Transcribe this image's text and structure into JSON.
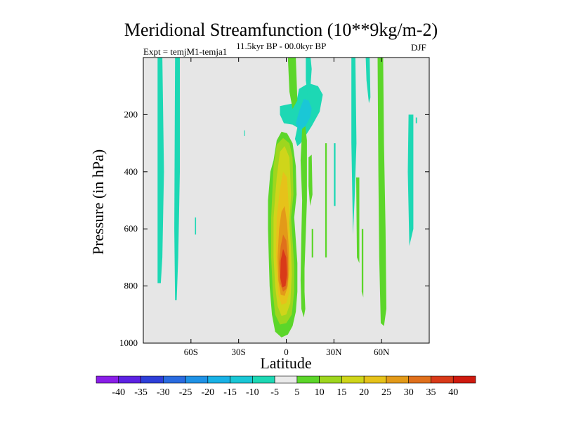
{
  "chart_data": {
    "type": "contour",
    "title": "Meridional Streamfunction (10**9kg/m-2)",
    "subtitle_left": "Expt = temjM1-temja1",
    "subtitle_center": "11.5kyr BP - 00.0kyr BP",
    "subtitle_right": "DJF",
    "xlabel": "Latitude",
    "ylabel": "Pressure (in hPa)",
    "xlim": [
      -90,
      90
    ],
    "ylim": [
      1000,
      0
    ],
    "x_ticks": [
      {
        "value": -60,
        "label": "60S"
      },
      {
        "value": -30,
        "label": "30S"
      },
      {
        "value": 0,
        "label": "0"
      },
      {
        "value": 30,
        "label": "30N"
      },
      {
        "value": 60,
        "label": "60N"
      }
    ],
    "y_ticks": [
      {
        "value": 200,
        "label": "200"
      },
      {
        "value": 400,
        "label": "400"
      },
      {
        "value": 600,
        "label": "600"
      },
      {
        "value": 800,
        "label": "800"
      },
      {
        "value": 1000,
        "label": "1000"
      }
    ],
    "background_color": "#e6e6e6",
    "colorbar": {
      "labels": [
        "-40",
        "-35",
        "-30",
        "-25",
        "-20",
        "-15",
        "-10",
        "-5",
        "5",
        "10",
        "15",
        "20",
        "25",
        "30",
        "35",
        "40"
      ],
      "colors": [
        "#8a1ee8",
        "#5d22e3",
        "#2e3fd9",
        "#2a6be0",
        "#1f92e6",
        "#19b2e6",
        "#1ac7d6",
        "#1dd8b4",
        "#eaeaea",
        "#5cd62a",
        "#9ed61e",
        "#cfd51a",
        "#e6c21a",
        "#e39a19",
        "#e0701c",
        "#d93a19",
        "#cf1a0f"
      ]
    },
    "regions": [
      {
        "name": "negative-band-70s",
        "level": -7.5,
        "points": [
          [
            -81,
            0
          ],
          [
            -78,
            0
          ],
          [
            -77,
            400
          ],
          [
            -78,
            700
          ],
          [
            -79,
            790
          ],
          [
            -81,
            790
          ],
          [
            -81,
            500
          ]
        ]
      },
      {
        "name": "negative-band-65s",
        "level": -7.5,
        "points": [
          [
            -70,
            0
          ],
          [
            -67,
            0
          ],
          [
            -67,
            400
          ],
          [
            -68,
            700
          ],
          [
            -69,
            850
          ],
          [
            -70,
            850
          ],
          [
            -70.5,
            600
          ]
        ]
      },
      {
        "name": "negative-speck-60s",
        "level": -7.5,
        "points": [
          [
            -57.5,
            560
          ],
          [
            -56.8,
            560
          ],
          [
            -56.8,
            620
          ],
          [
            -57.5,
            620
          ]
        ]
      },
      {
        "name": "negative-speck-25s",
        "level": -7.5,
        "points": [
          [
            -26.5,
            255
          ],
          [
            -26,
            255
          ],
          [
            -26,
            275
          ],
          [
            -26.5,
            275
          ]
        ]
      },
      {
        "name": "upper-cell-outer",
        "level": -7.5,
        "points": [
          [
            8,
            110
          ],
          [
            14,
            90
          ],
          [
            20,
            100
          ],
          [
            23,
            130
          ],
          [
            21,
            190
          ],
          [
            16,
            240
          ],
          [
            12,
            275
          ],
          [
            9,
            300
          ],
          [
            7,
            310
          ],
          [
            5.5,
            285
          ],
          [
            7,
            245
          ],
          [
            4,
            235
          ],
          [
            -1.5,
            230
          ],
          [
            -4,
            200
          ],
          [
            -4,
            170
          ],
          [
            0,
            165
          ],
          [
            5,
            160
          ],
          [
            7,
            140
          ]
        ]
      },
      {
        "name": "upper-cell-inner",
        "level": -12.5,
        "points": [
          [
            11,
            145
          ],
          [
            14,
            150
          ],
          [
            16,
            178
          ],
          [
            15,
            210
          ],
          [
            12,
            240
          ],
          [
            8,
            255
          ],
          [
            6,
            230
          ],
          [
            8,
            190
          ]
        ]
      },
      {
        "name": "neg-band-10n",
        "level": -7.5,
        "points": [
          [
            12.3,
            0
          ],
          [
            15.3,
            0
          ],
          [
            16,
            40
          ],
          [
            15,
            120
          ],
          [
            13.5,
            130
          ],
          [
            12.3,
            80
          ]
        ]
      },
      {
        "name": "neg-band-30n",
        "level": -7.5,
        "points": [
          [
            30,
            300
          ],
          [
            31,
            300
          ],
          [
            31,
            520
          ],
          [
            30,
            520
          ]
        ]
      },
      {
        "name": "neg-band-40n",
        "level": -7.5,
        "points": [
          [
            41,
            0
          ],
          [
            43.5,
            0
          ],
          [
            44.2,
            300
          ],
          [
            43,
            500
          ],
          [
            42,
            620
          ],
          [
            41,
            300
          ]
        ]
      },
      {
        "name": "neg-band-48n",
        "level": -7.5,
        "points": [
          [
            50,
            0
          ],
          [
            52.5,
            0
          ],
          [
            53,
            140
          ],
          [
            52,
            160
          ],
          [
            50.5,
            80
          ]
        ]
      },
      {
        "name": "neg-band-78n",
        "level": -7.5,
        "points": [
          [
            77,
            200
          ],
          [
            80,
            200
          ],
          [
            80,
            600
          ],
          [
            77.5,
            660
          ],
          [
            76.5,
            400
          ]
        ]
      },
      {
        "name": "neg-speck-80n",
        "level": -7.5,
        "points": [
          [
            81.5,
            210
          ],
          [
            82.3,
            210
          ],
          [
            82.3,
            230
          ],
          [
            81.5,
            230
          ]
        ]
      },
      {
        "name": "positive-outer",
        "level": 7.5,
        "points": [
          [
            -8,
            360
          ],
          [
            -6,
            290
          ],
          [
            -3,
            260
          ],
          [
            0.5,
            265
          ],
          [
            4,
            300
          ],
          [
            6,
            380
          ],
          [
            6.5,
            480
          ],
          [
            5,
            560
          ],
          [
            6,
            640
          ],
          [
            7,
            720
          ],
          [
            7,
            820
          ],
          [
            6,
            890
          ],
          [
            4,
            940
          ],
          [
            1,
            970
          ],
          [
            -3,
            980
          ],
          [
            -7,
            960
          ],
          [
            -9,
            900
          ],
          [
            -10.5,
            800
          ],
          [
            -11,
            700
          ],
          [
            -11.5,
            600
          ],
          [
            -11.5,
            500
          ],
          [
            -10,
            400
          ]
        ]
      },
      {
        "name": "positive-10",
        "level": 12.5,
        "points": [
          [
            -8,
            380
          ],
          [
            -6,
            305
          ],
          [
            -2,
            282
          ],
          [
            2,
            300
          ],
          [
            4,
            350
          ],
          [
            4.5,
            480
          ],
          [
            3,
            560
          ],
          [
            4,
            640
          ],
          [
            5,
            730
          ],
          [
            5,
            820
          ],
          [
            3.5,
            900
          ],
          [
            0,
            930
          ],
          [
            -4,
            935
          ],
          [
            -7,
            900
          ],
          [
            -8.5,
            820
          ],
          [
            -9.5,
            700
          ],
          [
            -9.5,
            560
          ]
        ]
      },
      {
        "name": "positive-15",
        "level": 17.5,
        "points": [
          [
            -6,
            420
          ],
          [
            -4,
            330
          ],
          [
            -1,
            310
          ],
          [
            2,
            350
          ],
          [
            3,
            480
          ],
          [
            2,
            580
          ],
          [
            3,
            670
          ],
          [
            3.5,
            760
          ],
          [
            2.5,
            860
          ],
          [
            0,
            900
          ],
          [
            -3,
            905
          ],
          [
            -5.5,
            870
          ],
          [
            -7,
            800
          ],
          [
            -8,
            700
          ],
          [
            -8,
            560
          ]
        ]
      },
      {
        "name": "positive-20",
        "level": 22.5,
        "points": [
          [
            -4,
            460
          ],
          [
            -2,
            400
          ],
          [
            0.5,
            420
          ],
          [
            1.5,
            520
          ],
          [
            2,
            620
          ],
          [
            2.5,
            720
          ],
          [
            2,
            820
          ],
          [
            0,
            860
          ],
          [
            -3,
            865
          ],
          [
            -5,
            830
          ],
          [
            -6,
            760
          ],
          [
            -6.5,
            680
          ],
          [
            -6,
            560
          ]
        ]
      },
      {
        "name": "positive-25",
        "level": 27.5,
        "points": [
          [
            -3,
            540
          ],
          [
            -1,
            520
          ],
          [
            0.5,
            580
          ],
          [
            1.5,
            660
          ],
          [
            1.8,
            740
          ],
          [
            1,
            800
          ],
          [
            -1,
            835
          ],
          [
            -3.5,
            830
          ],
          [
            -5,
            780
          ],
          [
            -5.5,
            700
          ],
          [
            -4.5,
            600
          ]
        ]
      },
      {
        "name": "positive-30",
        "level": 32.5,
        "points": [
          [
            -2,
            620
          ],
          [
            0,
            640
          ],
          [
            1,
            700
          ],
          [
            1.2,
            770
          ],
          [
            0,
            810
          ],
          [
            -2,
            820
          ],
          [
            -4,
            790
          ],
          [
            -4.5,
            720
          ],
          [
            -3.5,
            660
          ]
        ]
      },
      {
        "name": "positive-35",
        "level": 37.5,
        "points": [
          [
            -2,
            670
          ],
          [
            0,
            700
          ],
          [
            0.5,
            760
          ],
          [
            -0.5,
            800
          ],
          [
            -2.5,
            805
          ],
          [
            -3.8,
            770
          ],
          [
            -3.5,
            710
          ]
        ]
      },
      {
        "name": "green-tongue-0",
        "level": 7.5,
        "points": [
          [
            1,
            0
          ],
          [
            6,
            0
          ],
          [
            7,
            150
          ],
          [
            4,
            180
          ],
          [
            2,
            120
          ]
        ]
      },
      {
        "name": "green-column-8n",
        "level": 7.5,
        "points": [
          [
            9,
            360
          ],
          [
            10,
            250
          ],
          [
            12,
            240
          ],
          [
            13,
            290
          ],
          [
            13,
            500
          ],
          [
            12.5,
            580
          ],
          [
            11.5,
            740
          ],
          [
            11.5,
            820
          ],
          [
            12,
            880
          ],
          [
            11,
            910
          ],
          [
            9.5,
            880
          ],
          [
            9,
            780
          ],
          [
            9.5,
            620
          ],
          [
            10,
            500
          ]
        ]
      },
      {
        "name": "green-column-13n",
        "level": 7.5,
        "points": [
          [
            14,
            350
          ],
          [
            16,
            340
          ],
          [
            16.5,
            480
          ],
          [
            15,
            520
          ],
          [
            14,
            450
          ]
        ]
      },
      {
        "name": "green-column-15n",
        "level": 7.5,
        "points": [
          [
            16,
            600
          ],
          [
            17,
            600
          ],
          [
            17,
            700
          ],
          [
            16,
            700
          ]
        ]
      },
      {
        "name": "green-column-26n",
        "level": 7.5,
        "points": [
          [
            24.5,
            300
          ],
          [
            25.5,
            300
          ],
          [
            25.5,
            700
          ],
          [
            24.5,
            700
          ]
        ]
      },
      {
        "name": "green-column-43n",
        "level": 7.5,
        "points": [
          [
            44,
            420
          ],
          [
            46,
            420
          ],
          [
            46,
            720
          ],
          [
            44.5,
            700
          ]
        ]
      },
      {
        "name": "green-column-47n",
        "level": 7.5,
        "points": [
          [
            47.5,
            600
          ],
          [
            48.5,
            600
          ],
          [
            48.5,
            840
          ],
          [
            47.5,
            820
          ]
        ]
      },
      {
        "name": "green-column-60n",
        "level": 7.5,
        "points": [
          [
            57.5,
            0
          ],
          [
            61,
            0
          ],
          [
            61.5,
            300
          ],
          [
            62.5,
            600
          ],
          [
            63,
            880
          ],
          [
            61.5,
            940
          ],
          [
            59.5,
            930
          ],
          [
            58.5,
            700
          ],
          [
            58,
            400
          ]
        ]
      }
    ]
  }
}
